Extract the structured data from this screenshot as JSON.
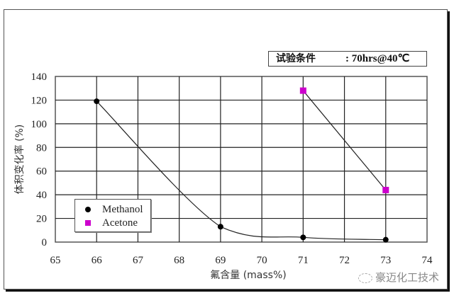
{
  "chart_data": {
    "type": "line",
    "title": "",
    "annotation": {
      "label": "试验条件",
      "value": ": 70hrs@40℃"
    },
    "xlabel": "氟含量 (mass%)",
    "ylabel": "体积变化率 (%)",
    "xlim": [
      65,
      74
    ],
    "ylim": [
      0,
      140
    ],
    "x_ticks": [
      65,
      66,
      67,
      68,
      69,
      70,
      71,
      72,
      73,
      74
    ],
    "y_ticks": [
      0,
      20,
      40,
      60,
      80,
      100,
      120,
      140
    ],
    "grid": true,
    "legend_position": "lower left",
    "series": [
      {
        "name": "Methanol",
        "marker": "circle",
        "color": "#000000",
        "smooth": true,
        "x": [
          66,
          69,
          71,
          73
        ],
        "y": [
          119,
          13,
          4,
          2
        ]
      },
      {
        "name": "Acetone",
        "marker": "square",
        "color": "#cc00cc",
        "smooth": false,
        "x": [
          71,
          73
        ],
        "y": [
          128,
          44
        ]
      }
    ]
  },
  "labels": {
    "cond_label": "试验条件",
    "cond_value": ": 70hrs@40℃",
    "xlabel": "氟含量 (mass%)",
    "ylabel": "体积变化率 (%)",
    "legend": [
      "Methanol",
      "Acetone"
    ],
    "watermark": "豪迈化工技术"
  }
}
